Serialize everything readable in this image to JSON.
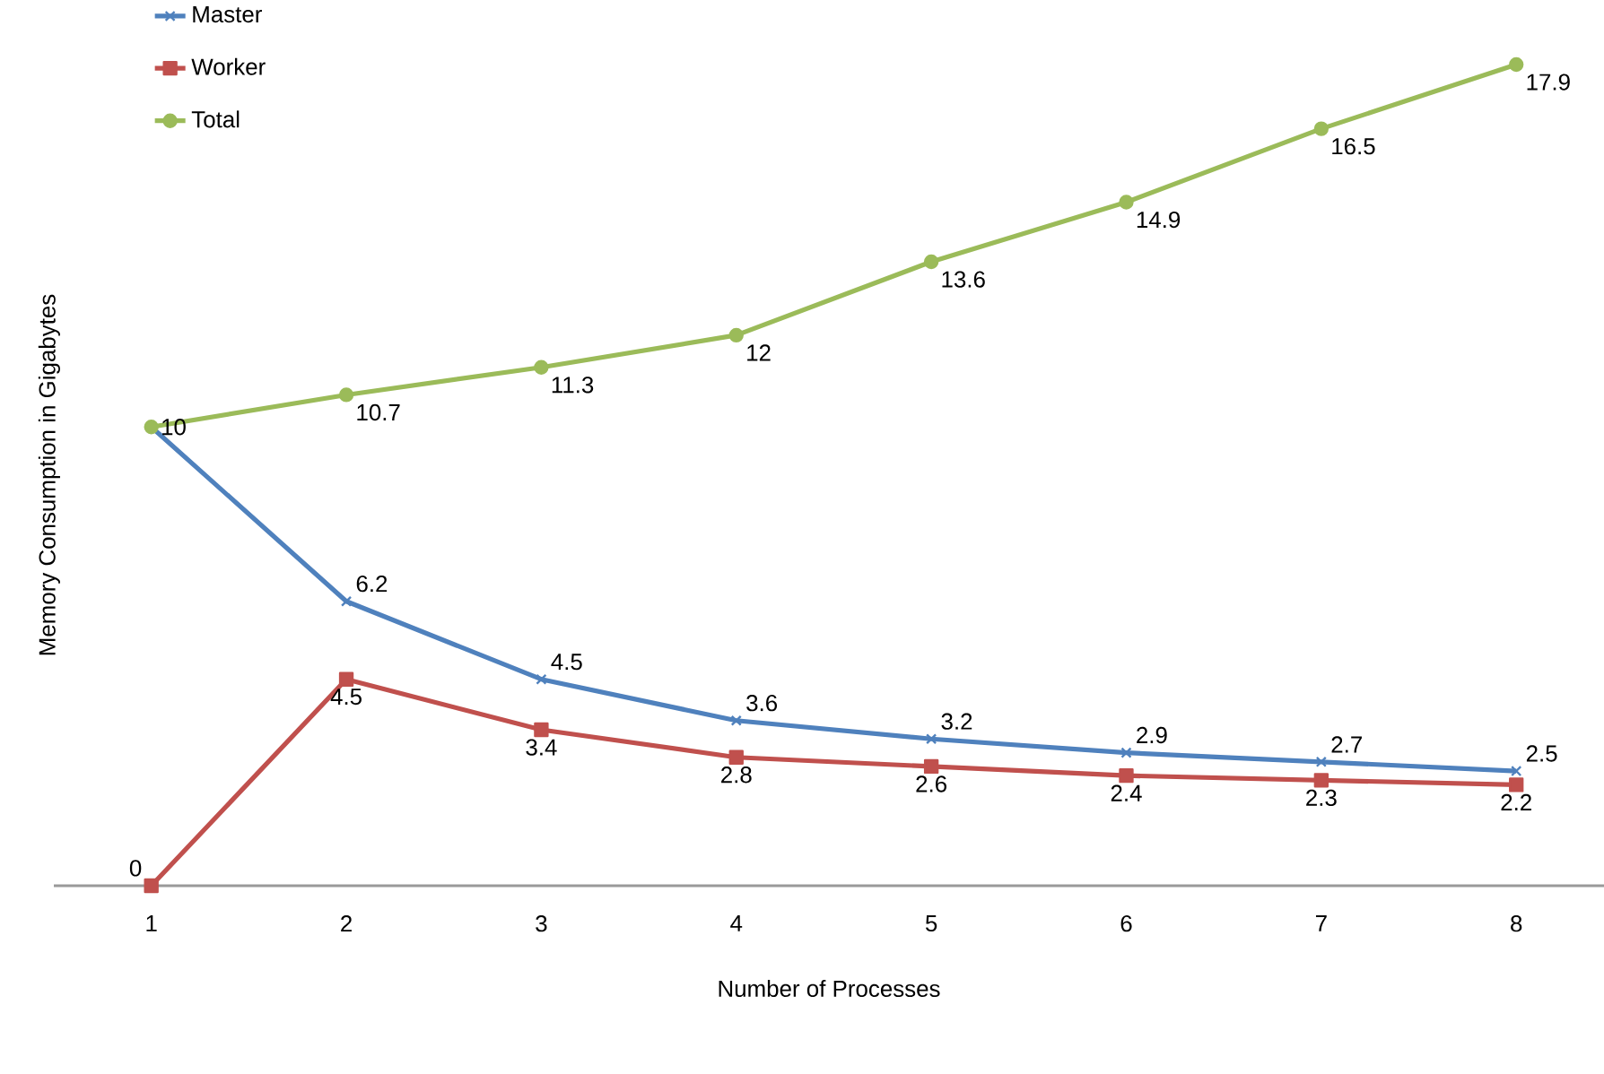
{
  "chart_data": {
    "type": "line",
    "xlabel": "Number of Processes",
    "ylabel": "Memory Consumption in Gigabytes",
    "categories": [
      "1",
      "2",
      "3",
      "4",
      "5",
      "6",
      "7",
      "8"
    ],
    "tick_labels": "x",
    "legend": "top left",
    "series": [
      {
        "name": "Master",
        "color": "#4f81bd",
        "marker": "cross",
        "values": [
          10,
          6.2,
          4.5,
          3.6,
          3.2,
          2.9,
          2.7,
          2.5
        ],
        "value_labels": [
          null,
          "6.2",
          "4.5",
          "3.6",
          "3.2",
          "2.9",
          "2.7",
          "2.5"
        ]
      },
      {
        "name": "Worker",
        "color": "#c0504d",
        "marker": "square",
        "values": [
          0,
          4.5,
          3.4,
          2.8,
          2.6,
          2.4,
          2.3,
          2.2
        ],
        "value_labels": [
          "0",
          "4.5",
          "3.4",
          "2.8",
          "2.6",
          "2.4",
          "2.3",
          "2.2"
        ]
      },
      {
        "name": "Total",
        "color": "#9bbb59",
        "marker": "circle",
        "values": [
          10,
          10.7,
          11.3,
          12,
          13.6,
          14.9,
          16.5,
          17.9
        ],
        "value_labels": [
          "10",
          "10.7",
          "11.3",
          "12",
          "13.6",
          "14.9",
          "16.5",
          "17.9"
        ]
      }
    ]
  }
}
